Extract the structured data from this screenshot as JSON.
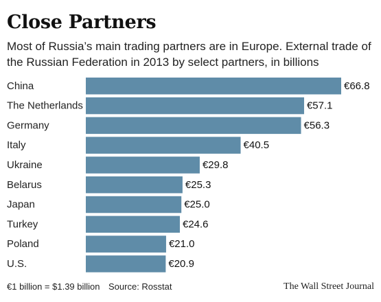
{
  "header": {
    "title": "Close Partners",
    "subtitle": "Most of Russia’s main trading partners are in Europe. External trade of the Russian Federation in 2013 by select partners, in billions"
  },
  "chart_data": {
    "type": "bar",
    "orientation": "horizontal",
    "categories": [
      "China",
      "The Netherlands",
      "Germany",
      "Italy",
      "Ukraine",
      "Belarus",
      "Japan",
      "Turkey",
      "Poland",
      "U.S."
    ],
    "values": [
      66.8,
      57.1,
      56.3,
      40.5,
      29.8,
      25.3,
      25.0,
      24.6,
      21.0,
      20.9
    ],
    "value_labels": [
      "€66.8",
      "€57.1",
      "€56.3",
      "€40.5",
      "€29.8",
      "€25.3",
      "€25.0",
      "€24.6",
      "€21.0",
      "€20.9"
    ],
    "bar_color": "#5f8ca8",
    "grid": false,
    "title": "Close Partners"
  },
  "footer": {
    "note": "€1 billion = $1.39 billion",
    "source": "Source: Rosstat",
    "credit": "The Wall Street Journal"
  }
}
